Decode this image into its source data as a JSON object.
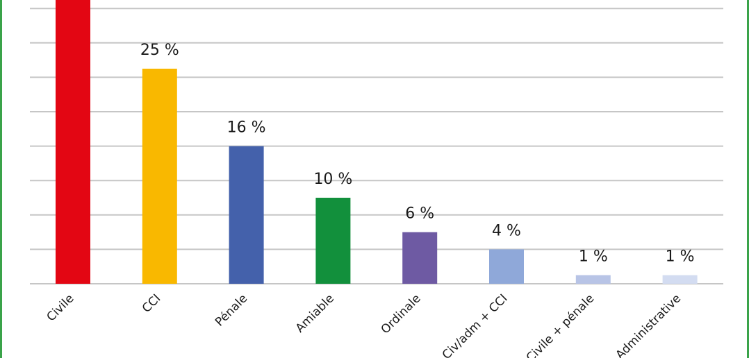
{
  "chart_data": {
    "type": "bar",
    "categories": [
      "Civile",
      "CCI",
      "Pénale",
      "Amiable",
      "Ordinale",
      "Civ/adm + CCI",
      "Civile + pénale",
      "Administrative"
    ],
    "values": [
      35,
      25,
      16,
      10,
      6,
      4,
      1,
      1
    ],
    "value_labels": [
      "",
      "25 %",
      "16 %",
      "10 %",
      "6 %",
      "4 %",
      "1 %",
      "1 %"
    ],
    "colors": [
      "#e30613",
      "#f9b800",
      "#4461ab",
      "#12903c",
      "#6e5aa3",
      "#8fa8d9",
      "#b8c4e6",
      "#d3dcf1"
    ],
    "ylim": [
      0,
      35
    ],
    "grid": true,
    "title": "",
    "xlabel": "",
    "ylabel": ""
  }
}
